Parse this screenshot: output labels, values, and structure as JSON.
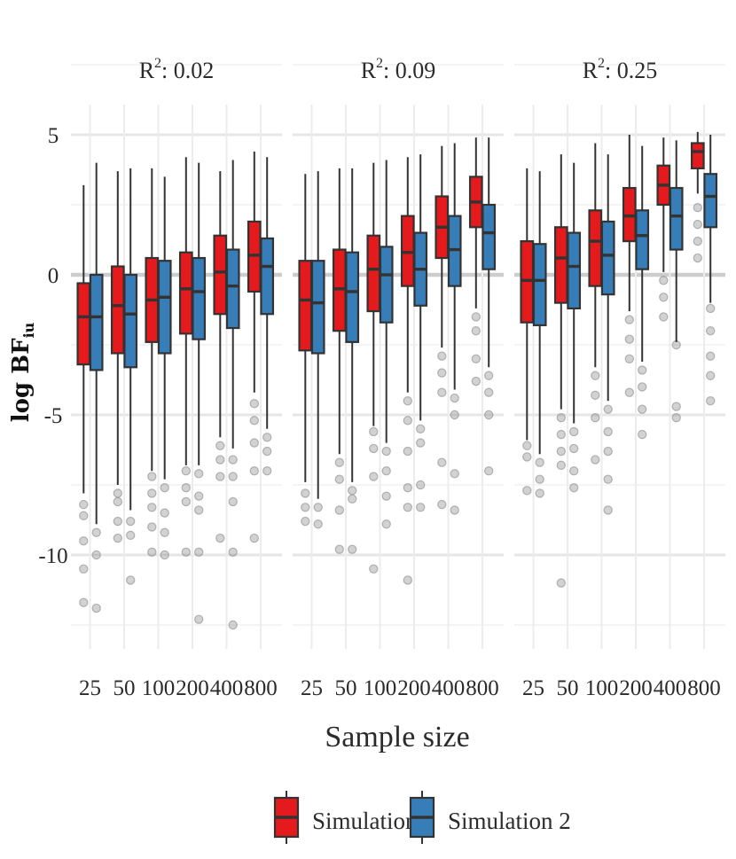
{
  "chart_data": {
    "type": "boxplot",
    "xlabel": "Sample size",
    "ylabel": {
      "main": "log BF",
      "subscript": "iu"
    },
    "categories": [
      "25",
      "50",
      "100",
      "200",
      "400",
      "800"
    ],
    "yticks": [
      5,
      0,
      -5,
      -10
    ],
    "ytick_labels": [
      "5",
      "0",
      "-5",
      "-10"
    ],
    "ylim": [
      -13.2,
      6.4
    ],
    "legend": [
      "Simulation 1",
      "Simulation 2"
    ],
    "colors": {
      "Simulation 1": "#e41a1c",
      "Simulation 2": "#377eb8",
      "outline": "#333333",
      "outlier": "#7f7f7f"
    },
    "panels": [
      {
        "title": {
          "prefix": "R",
          "sup": "2",
          "value": ": 0.02"
        },
        "series": [
          {
            "name": "Simulation 1",
            "boxes": [
              {
                "lo": -7.8,
                "q1": -3.2,
                "med": -1.5,
                "q3": -0.3,
                "hi": 3.2,
                "out": [
                  -8.2,
                  -8.6,
                  -9.5,
                  -10.5,
                  -11.7
                ]
              },
              {
                "lo": -7.5,
                "q1": -2.8,
                "med": -1.1,
                "q3": 0.3,
                "hi": 3.7,
                "out": [
                  -7.8,
                  -8.1,
                  -8.8,
                  -9.4
                ]
              },
              {
                "lo": -7.0,
                "q1": -2.4,
                "med": -0.9,
                "q3": 0.6,
                "hi": 3.8,
                "out": [
                  -7.2,
                  -7.8,
                  -8.3,
                  -9.0,
                  -9.9
                ]
              },
              {
                "lo": -6.8,
                "q1": -2.1,
                "med": -0.5,
                "q3": 0.8,
                "hi": 4.2,
                "out": [
                  -7.0,
                  -7.6,
                  -8.1,
                  -9.9
                ]
              },
              {
                "lo": -5.8,
                "q1": -1.4,
                "med": 0.1,
                "q3": 1.4,
                "hi": 3.7,
                "out": [
                  -6.1,
                  -6.6,
                  -7.2,
                  -9.4
                ]
              },
              {
                "lo": -4.2,
                "q1": -0.6,
                "med": 0.7,
                "q3": 1.9,
                "hi": 4.4,
                "out": [
                  -4.6,
                  -5.2,
                  -6.0,
                  -7.0,
                  -9.4
                ]
              }
            ]
          },
          {
            "name": "Simulation 2",
            "boxes": [
              {
                "lo": -8.9,
                "q1": -3.4,
                "med": -1.5,
                "q3": 0.0,
                "hi": 4.0,
                "out": [
                  -9.2,
                  -10.0,
                  -11.9
                ]
              },
              {
                "lo": -8.4,
                "q1": -3.3,
                "med": -1.4,
                "q3": 0.0,
                "hi": 3.8,
                "out": [
                  -8.8,
                  -9.3,
                  -10.9
                ]
              },
              {
                "lo": -7.3,
                "q1": -2.8,
                "med": -0.8,
                "q3": 0.5,
                "hi": 3.5,
                "out": [
                  -7.6,
                  -8.5,
                  -9.2,
                  -10.0
                ]
              },
              {
                "lo": -6.8,
                "q1": -2.3,
                "med": -0.6,
                "q3": 0.6,
                "hi": 4.0,
                "out": [
                  -7.1,
                  -7.9,
                  -8.4,
                  -9.9,
                  -12.3
                ]
              },
              {
                "lo": -6.2,
                "q1": -1.9,
                "med": -0.4,
                "q3": 0.9,
                "hi": 4.1,
                "out": [
                  -6.6,
                  -7.2,
                  -8.1,
                  -9.9,
                  -12.5
                ]
              },
              {
                "lo": -5.5,
                "q1": -1.4,
                "med": 0.3,
                "q3": 1.3,
                "hi": 4.2,
                "out": [
                  -5.8,
                  -6.3,
                  -7.0
                ]
              }
            ]
          }
        ]
      },
      {
        "title": {
          "prefix": "R",
          "sup": "2",
          "value": ": 0.09"
        },
        "series": [
          {
            "name": "Simulation 1",
            "boxes": [
              {
                "lo": -7.4,
                "q1": -2.7,
                "med": -0.9,
                "q3": 0.5,
                "hi": 3.6,
                "out": [
                  -7.8,
                  -8.3,
                  -8.8
                ]
              },
              {
                "lo": -6.4,
                "q1": -2.0,
                "med": -0.5,
                "q3": 0.9,
                "hi": 3.8,
                "out": [
                  -6.7,
                  -7.3,
                  -8.4,
                  -9.8
                ]
              },
              {
                "lo": -5.4,
                "q1": -1.3,
                "med": 0.2,
                "q3": 1.4,
                "hi": 4.0,
                "out": [
                  -5.6,
                  -6.2,
                  -7.2,
                  -10.5
                ]
              },
              {
                "lo": -4.2,
                "q1": -0.4,
                "med": 0.8,
                "q3": 2.1,
                "hi": 4.2,
                "out": [
                  -4.5,
                  -5.2,
                  -6.3,
                  -7.6,
                  -8.3,
                  -10.9
                ]
              },
              {
                "lo": -2.6,
                "q1": 0.6,
                "med": 1.7,
                "q3": 2.8,
                "hi": 4.6,
                "out": [
                  -2.9,
                  -3.5,
                  -4.2,
                  -6.7,
                  -8.2
                ]
              },
              {
                "lo": -1.2,
                "q1": 1.7,
                "med": 2.6,
                "q3": 3.5,
                "hi": 4.9,
                "out": [
                  -1.5,
                  -2.0,
                  -3.0,
                  -3.8
                ]
              }
            ]
          },
          {
            "name": "Simulation 2",
            "boxes": [
              {
                "lo": -8.0,
                "q1": -2.8,
                "med": -1.0,
                "q3": 0.5,
                "hi": 3.7,
                "out": [
                  -8.3,
                  -8.9
                ]
              },
              {
                "lo": -7.4,
                "q1": -2.4,
                "med": -0.6,
                "q3": 0.8,
                "hi": 3.8,
                "out": [
                  -7.7,
                  -8.0,
                  -9.8
                ]
              },
              {
                "lo": -6.0,
                "q1": -1.7,
                "med": 0.0,
                "q3": 1.0,
                "hi": 4.1,
                "out": [
                  -6.3,
                  -7.0,
                  -7.9,
                  -8.9
                ]
              },
              {
                "lo": -5.2,
                "q1": -1.1,
                "med": 0.2,
                "q3": 1.5,
                "hi": 4.3,
                "out": [
                  -5.5,
                  -6.0,
                  -7.5,
                  -8.3
                ]
              },
              {
                "lo": -4.1,
                "q1": -0.4,
                "med": 0.9,
                "q3": 2.1,
                "hi": 4.7,
                "out": [
                  -4.4,
                  -5.0,
                  -7.1,
                  -8.4
                ]
              },
              {
                "lo": -3.3,
                "q1": 0.2,
                "med": 1.5,
                "q3": 2.5,
                "hi": 4.9,
                "out": [
                  -3.6,
                  -4.2,
                  -5.0,
                  -7.0
                ]
              }
            ]
          }
        ]
      },
      {
        "title": {
          "prefix": "R",
          "sup": "2",
          "value": ": 0.25"
        },
        "series": [
          {
            "name": "Simulation 1",
            "boxes": [
              {
                "lo": -5.9,
                "q1": -1.7,
                "med": -0.2,
                "q3": 1.2,
                "hi": 3.8,
                "out": [
                  -6.1,
                  -6.5,
                  -7.7
                ]
              },
              {
                "lo": -4.8,
                "q1": -1.0,
                "med": 0.6,
                "q3": 1.7,
                "hi": 4.3,
                "out": [
                  -5.1,
                  -5.7,
                  -6.3,
                  -6.8,
                  -11.0
                ]
              },
              {
                "lo": -3.3,
                "q1": -0.4,
                "med": 1.2,
                "q3": 2.3,
                "hi": 4.7,
                "out": [
                  -3.6,
                  -4.3,
                  -5.1,
                  -6.6
                ]
              },
              {
                "lo": -1.3,
                "q1": 1.2,
                "med": 2.1,
                "q3": 3.1,
                "hi": 5.0,
                "out": [
                  -1.6,
                  -2.3,
                  -3.0,
                  -4.2
                ]
              },
              {
                "lo": 0.1,
                "q1": 2.5,
                "med": 3.2,
                "q3": 3.9,
                "hi": 4.9,
                "out": [
                  -0.2,
                  -0.8,
                  -1.5
                ]
              },
              {
                "lo": 2.9,
                "q1": 3.8,
                "med": 4.4,
                "q3": 4.7,
                "hi": 5.1,
                "out": [
                  2.4,
                  1.8,
                  1.2,
                  0.6
                ]
              }
            ]
          },
          {
            "name": "Simulation 2",
            "boxes": [
              {
                "lo": -6.4,
                "q1": -1.8,
                "med": -0.2,
                "q3": 1.1,
                "hi": 3.7,
                "out": [
                  -6.7,
                  -7.3,
                  -7.8
                ]
              },
              {
                "lo": -5.3,
                "q1": -1.2,
                "med": 0.3,
                "q3": 1.5,
                "hi": 4.0,
                "out": [
                  -5.6,
                  -6.2,
                  -7.0,
                  -7.6
                ]
              },
              {
                "lo": -4.5,
                "q1": -0.7,
                "med": 0.7,
                "q3": 1.9,
                "hi": 4.3,
                "out": [
                  -4.8,
                  -5.6,
                  -6.3,
                  -7.3,
                  -8.4
                ]
              },
              {
                "lo": -3.1,
                "q1": 0.2,
                "med": 1.4,
                "q3": 2.3,
                "hi": 4.6,
                "out": [
                  -3.4,
                  -4.0,
                  -4.8,
                  -5.7
                ]
              },
              {
                "lo": -2.4,
                "q1": 0.9,
                "med": 2.1,
                "q3": 3.1,
                "hi": 4.8,
                "out": [
                  -2.5,
                  -4.7,
                  -5.1
                ]
              },
              {
                "lo": -1.0,
                "q1": 1.7,
                "med": 2.8,
                "q3": 3.6,
                "hi": 5.0,
                "out": [
                  -1.2,
                  -2.0,
                  -2.9,
                  -3.6,
                  -4.5
                ]
              }
            ]
          }
        ]
      }
    ]
  }
}
